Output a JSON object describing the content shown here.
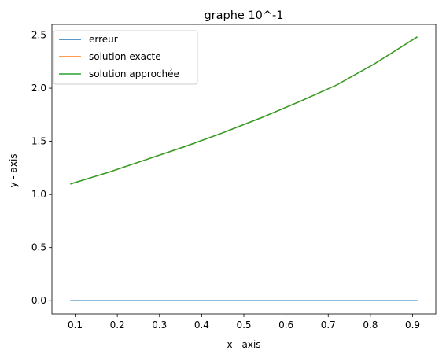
{
  "chart_data": {
    "type": "line",
    "title": "graphe 10^-1",
    "xlabel": "x - axis",
    "ylabel": "y - axis",
    "xlim": [
      0.045,
      0.955
    ],
    "ylim": [
      -0.124,
      2.6
    ],
    "xticks": [
      0.1,
      0.2,
      0.3,
      0.4,
      0.5,
      0.6,
      0.7,
      0.8,
      0.9
    ],
    "xtick_labels": [
      "0.1",
      "0.2",
      "0.3",
      "0.4",
      "0.5",
      "0.6",
      "0.7",
      "0.8",
      "0.9"
    ],
    "yticks": [
      0.0,
      0.5,
      1.0,
      1.5,
      2.0,
      2.5
    ],
    "ytick_labels": [
      "0.0",
      "0.5",
      "1.0",
      "1.5",
      "2.0",
      "2.5"
    ],
    "grid": false,
    "legend_position": "top-left",
    "x": [
      0.09,
      0.18,
      0.27,
      0.36,
      0.45,
      0.54,
      0.63,
      0.72,
      0.81,
      0.91
    ],
    "series": [
      {
        "name": "erreur",
        "color": "#1f77b4",
        "values": [
          0.0,
          0.0,
          0.0,
          0.0,
          0.0,
          0.0,
          0.0,
          0.0,
          0.0,
          0.0
        ]
      },
      {
        "name": "solution exacte",
        "color": "#ff7f0e",
        "values": [
          1.1,
          1.21,
          1.33,
          1.45,
          1.58,
          1.72,
          1.87,
          2.03,
          2.23,
          2.48
        ]
      },
      {
        "name": "solution approchée",
        "color": "#2ca02c",
        "values": [
          1.1,
          1.21,
          1.33,
          1.45,
          1.58,
          1.72,
          1.87,
          2.03,
          2.23,
          2.48
        ]
      }
    ]
  }
}
